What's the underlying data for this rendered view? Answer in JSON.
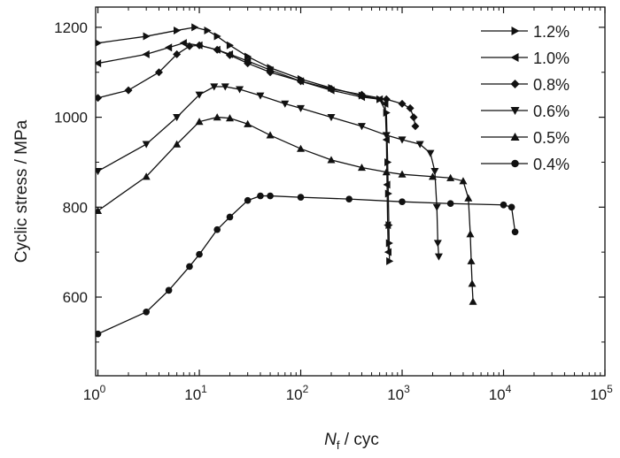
{
  "chart_data": {
    "type": "line",
    "xlabel": {
      "base": "N",
      "sub": "f",
      "unit": " / cyc"
    },
    "ylabel": "Cyclic stress / MPa",
    "x_scale": "log",
    "xlim": [
      0.95,
      100000
    ],
    "ylim": [
      425,
      1245
    ],
    "x_ticks": [
      {
        "value": 1,
        "base": "10",
        "exp": "0"
      },
      {
        "value": 10,
        "base": "10",
        "exp": "1"
      },
      {
        "value": 100,
        "base": "10",
        "exp": "2"
      },
      {
        "value": 1000,
        "base": "10",
        "exp": "3"
      },
      {
        "value": 10000,
        "base": "10",
        "exp": "4"
      },
      {
        "value": 100000,
        "base": "10",
        "exp": "5"
      }
    ],
    "y_ticks": [
      {
        "value": 600,
        "label": "600"
      },
      {
        "value": 800,
        "label": "800"
      },
      {
        "value": 1000,
        "label": "1000"
      },
      {
        "value": 1200,
        "label": "1200"
      }
    ],
    "grid": false,
    "legend_position": "top-right",
    "series": [
      {
        "name": "1.2%",
        "marker": "triangle-right",
        "x": [
          1,
          3,
          6,
          9,
          12,
          15,
          20,
          30,
          50,
          100,
          200,
          400,
          600,
          700,
          720,
          730,
          740,
          745,
          750
        ],
        "y": [
          1165,
          1180,
          1193,
          1200,
          1193,
          1180,
          1160,
          1135,
          1110,
          1085,
          1065,
          1048,
          1040,
          1010,
          900,
          830,
          760,
          720,
          680
        ]
      },
      {
        "name": "1.0%",
        "marker": "triangle-left",
        "x": [
          1,
          3,
          5,
          7,
          10,
          15,
          20,
          30,
          50,
          100,
          200,
          400,
          600,
          680,
          700,
          710,
          720,
          730
        ],
        "y": [
          1120,
          1140,
          1155,
          1165,
          1160,
          1150,
          1140,
          1125,
          1105,
          1080,
          1060,
          1045,
          1040,
          1030,
          950,
          850,
          760,
          700
        ]
      },
      {
        "name": "0.8%",
        "marker": "diamond",
        "x": [
          1,
          2,
          4,
          6,
          8,
          10,
          15,
          20,
          30,
          50,
          100,
          200,
          400,
          700,
          1000,
          1200,
          1300,
          1350
        ],
        "y": [
          1043,
          1060,
          1100,
          1140,
          1158,
          1160,
          1150,
          1138,
          1120,
          1100,
          1080,
          1063,
          1050,
          1040,
          1030,
          1020,
          1000,
          980
        ]
      },
      {
        "name": "0.6%",
        "marker": "triangle-down",
        "x": [
          1,
          3,
          6,
          10,
          14,
          18,
          25,
          40,
          70,
          100,
          200,
          400,
          700,
          1000,
          1500,
          1900,
          2100,
          2200,
          2250,
          2300
        ],
        "y": [
          880,
          940,
          1000,
          1050,
          1068,
          1068,
          1062,
          1048,
          1030,
          1020,
          1000,
          980,
          960,
          950,
          940,
          920,
          880,
          800,
          720,
          690
        ]
      },
      {
        "name": "0.5%",
        "marker": "triangle-up",
        "x": [
          1,
          3,
          6,
          10,
          15,
          20,
          30,
          50,
          100,
          200,
          400,
          700,
          1000,
          2000,
          3000,
          4000,
          4500,
          4700,
          4800,
          4900,
          5000
        ],
        "y": [
          792,
          868,
          940,
          990,
          1000,
          998,
          985,
          960,
          930,
          905,
          888,
          878,
          873,
          868,
          865,
          858,
          820,
          740,
          680,
          630,
          590
        ]
      },
      {
        "name": "0.4%",
        "marker": "circle",
        "x": [
          1,
          3,
          5,
          8,
          10,
          15,
          20,
          30,
          40,
          50,
          100,
          300,
          1000,
          3000,
          10000,
          12000,
          13000
        ],
        "y": [
          518,
          567,
          615,
          668,
          695,
          750,
          778,
          815,
          825,
          825,
          822,
          818,
          812,
          808,
          805,
          800,
          745
        ]
      }
    ]
  }
}
